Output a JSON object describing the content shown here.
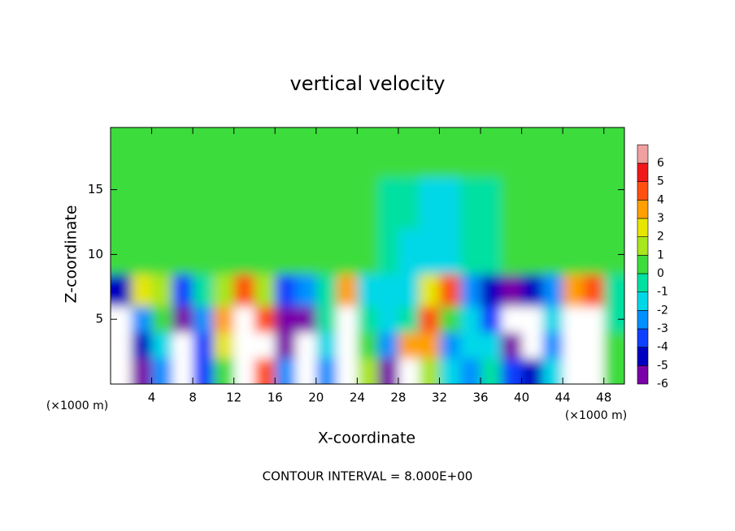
{
  "chart_data": {
    "type": "contour",
    "title": "vertical velocity",
    "xlabel": "X-coordinate",
    "ylabel": "Z-coordinate",
    "x_unit": "(×1000 m)",
    "z_unit": "(×1000 m)",
    "footer": "CONTOUR INTERVAL = 8.000E+00",
    "xlim": [
      0,
      50
    ],
    "ylim": [
      0,
      19.8
    ],
    "xticks": [
      4,
      8,
      12,
      16,
      20,
      24,
      28,
      32,
      36,
      40,
      44,
      48
    ],
    "yticks": [
      5,
      10,
      15
    ],
    "x": [
      1,
      3,
      5,
      7,
      9,
      11,
      13,
      15,
      17,
      19,
      21,
      23,
      25,
      27,
      29,
      31,
      33,
      35,
      37,
      39,
      41,
      43,
      45,
      47,
      49
    ],
    "z": [
      1,
      3,
      5,
      7,
      10,
      14,
      18
    ],
    "values": [
      [
        -7,
        -5,
        -2,
        -7,
        -3,
        1,
        8,
        5,
        -2,
        -7,
        -2,
        7,
        2,
        -6,
        8,
        2,
        -1,
        -2,
        0,
        -3,
        -4,
        -1,
        7,
        8,
        1
      ],
      [
        -7,
        -4,
        -1,
        -7,
        -3,
        3,
        8,
        7,
        -5,
        -7,
        -1,
        8,
        1,
        -2,
        4,
        4,
        -2,
        -1,
        -1,
        -5,
        -7,
        -2,
        8,
        8,
        1
      ],
      [
        -7,
        -2,
        1,
        -6,
        -2,
        4,
        8,
        5,
        -5,
        -5,
        0,
        8,
        0,
        -1,
        0,
        5,
        1,
        -1,
        -3,
        -7,
        -7,
        -1,
        7,
        8,
        0
      ],
      [
        -4,
        3,
        2,
        -3,
        0,
        2,
        5,
        2,
        -3,
        -2,
        0,
        4,
        -1,
        -1,
        -1,
        3,
        5,
        -2,
        -4,
        -5,
        -4,
        -2,
        4,
        5,
        0
      ],
      [
        0.5,
        0.5,
        1,
        0.5,
        0.5,
        0.5,
        0.5,
        0.5,
        0.5,
        0.5,
        0.5,
        0.5,
        0.5,
        0,
        -1,
        -1.5,
        -1,
        -0.5,
        0,
        0.5,
        0.5,
        0.5,
        0.5,
        0.5,
        0.5
      ],
      [
        0.3,
        0.3,
        0.3,
        0.3,
        0.3,
        0.3,
        0.3,
        0.3,
        0.3,
        0.5,
        0.5,
        1,
        0.5,
        0,
        -0.5,
        -1.5,
        -1,
        -0.5,
        0,
        0.3,
        0.3,
        0.3,
        0.3,
        0.3,
        0.3
      ],
      [
        0.5,
        0.5,
        0.5,
        0.5,
        0.5,
        0.5,
        0.5,
        0.5,
        0.5,
        0.5,
        0.5,
        0.5,
        0.5,
        0.5,
        0.3,
        0.3,
        0.3,
        0.5,
        0.5,
        0.5,
        0.5,
        0.5,
        0.5,
        0.5,
        0.5
      ]
    ],
    "colorbar_ticks": [
      -6,
      -5,
      -4,
      -3,
      -2,
      -1,
      0,
      1,
      2,
      3,
      4,
      5,
      6
    ],
    "colors": [
      "#7a00a8",
      "#0000c0",
      "#1040ff",
      "#0090ff",
      "#00d8e8",
      "#00e0a0",
      "#3cdc3c",
      "#a8e61e",
      "#e6e600",
      "#ffa000",
      "#ff5010",
      "#f01818",
      "#f0a0a0"
    ],
    "out_of_range_color": "#ffffff"
  }
}
